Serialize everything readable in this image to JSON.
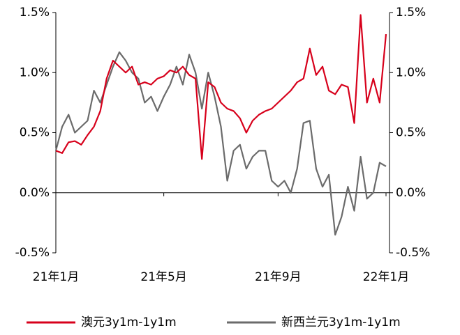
{
  "chart_data": {
    "type": "line",
    "categories": [
      "21年1月",
      null,
      null,
      null,
      null,
      null,
      null,
      null,
      null,
      null,
      null,
      null,
      null,
      null,
      null,
      null,
      null,
      "21年5月",
      null,
      null,
      null,
      null,
      null,
      null,
      null,
      null,
      null,
      null,
      null,
      null,
      null,
      null,
      null,
      null,
      null,
      "21年9月",
      null,
      null,
      null,
      null,
      null,
      null,
      null,
      null,
      null,
      null,
      null,
      null,
      null,
      null,
      null,
      null,
      "22年1月"
    ],
    "series": [
      {
        "name": "澳元3y1m-1y1m",
        "color": "#d7001b",
        "values": [
          0.35,
          0.33,
          0.42,
          0.43,
          0.4,
          0.48,
          0.55,
          0.68,
          0.95,
          1.1,
          1.05,
          1.0,
          1.05,
          0.9,
          0.92,
          0.9,
          0.95,
          0.97,
          1.02,
          1.0,
          1.05,
          0.98,
          0.95,
          0.28,
          0.92,
          0.88,
          0.75,
          0.7,
          0.68,
          0.62,
          0.5,
          0.6,
          0.65,
          0.68,
          0.7,
          0.75,
          0.8,
          0.85,
          0.92,
          0.95,
          1.2,
          0.98,
          1.05,
          0.85,
          0.82,
          0.9,
          0.88,
          0.58,
          1.48,
          0.75,
          0.95,
          0.75,
          1.32
        ]
      },
      {
        "name": "新西兰元3y1m-1y1m",
        "color": "#6b6b6b",
        "axis": "y2",
        "values": [
          0.35,
          0.55,
          0.65,
          0.5,
          0.55,
          0.6,
          0.85,
          0.75,
          0.9,
          1.05,
          1.17,
          1.1,
          1.0,
          0.95,
          0.75,
          0.8,
          0.68,
          0.8,
          0.9,
          1.05,
          0.9,
          1.15,
          1.0,
          0.7,
          1.0,
          0.8,
          0.55,
          0.1,
          0.35,
          0.4,
          0.2,
          0.3,
          0.35,
          0.35,
          0.1,
          0.05,
          0.1,
          0.0,
          0.2,
          0.58,
          0.6,
          0.2,
          0.05,
          0.15,
          -0.35,
          -0.2,
          0.05,
          -0.15,
          0.3,
          -0.05,
          0.0,
          0.25,
          0.22
        ]
      }
    ],
    "ylim": [
      -0.5,
      1.5
    ],
    "yticks": [
      {
        "value": 1.5,
        "label": "1.5%"
      },
      {
        "value": 1.0,
        "label": "1.0%"
      },
      {
        "value": 0.5,
        "label": "0.5%"
      },
      {
        "value": 0.0,
        "label": "0.0%"
      },
      {
        "value": -0.5,
        "label": "-0.5%"
      }
    ],
    "y2lim": [
      -0.5,
      1.5
    ],
    "y2ticks": [
      {
        "value": 1.5,
        "label": "1.5%"
      },
      {
        "value": 1.0,
        "label": "1.0%"
      },
      {
        "value": 0.5,
        "label": "0.5%"
      },
      {
        "value": 0.0,
        "label": "0.0%"
      },
      {
        "value": -0.5,
        "label": "-0.5%"
      }
    ],
    "legend": "bottom"
  }
}
